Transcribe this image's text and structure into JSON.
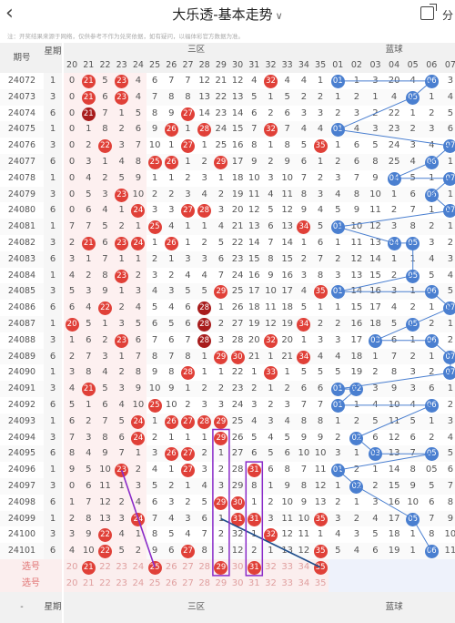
{
  "app": {
    "title": "大乐透-基本走势",
    "share_label": "分",
    "back": "back-icon"
  },
  "disclaimer": "注：开奖结果来源于网络，仅供参考不作为兑奖依据，如有疑问，以福体彩官方数据为准。",
  "colors": {
    "front_ball": "#e04038",
    "dup_ball": "#a81c1c",
    "back_ball": "#4a7fd0",
    "select_bg": "#fbeeee"
  },
  "header": {
    "period": "期号",
    "week": "星期",
    "front_zone": "三区",
    "back_zone": "蓝球",
    "front_cols": [
      "20",
      "21",
      "22",
      "23",
      "24",
      "25",
      "26",
      "27",
      "28",
      "29",
      "30",
      "31",
      "32",
      "33",
      "34",
      "35"
    ],
    "back_cols": [
      "01",
      "02",
      "03",
      "04",
      "05",
      "06",
      "07"
    ]
  },
  "rows": [
    {
      "p": "24072",
      "w": "1",
      "f": [
        "0",
        "21",
        "5",
        "23",
        "4",
        "6",
        "7",
        "7",
        "12",
        "21",
        "12",
        "4",
        "32",
        "4",
        "4",
        "1"
      ],
      "fb": [
        1,
        3,
        12
      ],
      "b": [
        "01",
        "1",
        "3",
        "20",
        "4",
        "06",
        "3"
      ],
      "bb": [
        0,
        5
      ]
    },
    {
      "p": "24073",
      "w": "3",
      "f": [
        "0",
        "21",
        "6",
        "23",
        "4",
        "7",
        "8",
        "8",
        "13",
        "22",
        "13",
        "5",
        "1",
        "5",
        "2",
        "2"
      ],
      "fb": [
        1,
        3
      ],
      "b": [
        "1",
        "2",
        "1",
        "4",
        "05",
        "1",
        "4"
      ],
      "bb": [
        4
      ]
    },
    {
      "p": "24074",
      "w": "6",
      "f": [
        "0",
        "21",
        "7",
        "1",
        "5",
        "8",
        "9",
        "27",
        "14",
        "23",
        "14",
        "6",
        "2",
        "6",
        "3",
        "3"
      ],
      "fb": [
        1,
        7
      ],
      "df": [
        1
      ],
      "b": [
        "2",
        "3",
        "2",
        "22",
        "1",
        "2",
        "5"
      ],
      "bb": []
    },
    {
      "p": "24075",
      "w": "1",
      "f": [
        "0",
        "1",
        "8",
        "2",
        "6",
        "9",
        "26",
        "1",
        "28",
        "24",
        "15",
        "7",
        "32",
        "7",
        "4",
        "4"
      ],
      "fb": [
        6,
        8,
        12
      ],
      "b": [
        "01",
        "4",
        "3",
        "23",
        "2",
        "3",
        "6"
      ],
      "bb": [
        0
      ]
    },
    {
      "p": "24076",
      "w": "3",
      "f": [
        "0",
        "2",
        "22",
        "3",
        "7",
        "10",
        "1",
        "27",
        "1",
        "25",
        "16",
        "8",
        "1",
        "8",
        "5",
        "35"
      ],
      "fb": [
        2,
        7,
        15
      ],
      "b": [
        "1",
        "6",
        "5",
        "24",
        "3",
        "4",
        "07"
      ],
      "bb": [
        6
      ]
    },
    {
      "p": "24077",
      "w": "6",
      "f": [
        "0",
        "3",
        "1",
        "4",
        "8",
        "25",
        "26",
        "1",
        "2",
        "29",
        "17",
        "9",
        "2",
        "9",
        "6",
        "1"
      ],
      "fb": [
        5,
        6,
        9
      ],
      "b": [
        "2",
        "6",
        "8",
        "25",
        "4",
        "06",
        "1"
      ],
      "bb": [
        5
      ]
    },
    {
      "p": "24078",
      "w": "1",
      "f": [
        "0",
        "4",
        "2",
        "5",
        "9",
        "1",
        "1",
        "2",
        "3",
        "1",
        "18",
        "10",
        "3",
        "10",
        "7",
        "2"
      ],
      "fb": [],
      "b": [
        "3",
        "7",
        "9",
        "04",
        "5",
        "1",
        "07"
      ],
      "bb": [
        3,
        6
      ]
    },
    {
      "p": "24079",
      "w": "3",
      "f": [
        "0",
        "5",
        "3",
        "23",
        "10",
        "2",
        "2",
        "3",
        "4",
        "2",
        "19",
        "11",
        "4",
        "11",
        "8",
        "3"
      ],
      "fb": [
        3
      ],
      "b": [
        "4",
        "8",
        "10",
        "1",
        "6",
        "06",
        "1"
      ],
      "bb": [
        5
      ]
    },
    {
      "p": "24080",
      "w": "6",
      "f": [
        "0",
        "6",
        "4",
        "1",
        "24",
        "3",
        "3",
        "27",
        "28",
        "3",
        "20",
        "12",
        "5",
        "12",
        "9",
        "4"
      ],
      "fb": [
        4,
        7,
        8
      ],
      "b": [
        "5",
        "9",
        "11",
        "2",
        "7",
        "1",
        "07"
      ],
      "bb": [
        6
      ]
    },
    {
      "p": "24081",
      "w": "1",
      "f": [
        "7",
        "7",
        "5",
        "2",
        "1",
        "25",
        "4",
        "1",
        "1",
        "4",
        "21",
        "13",
        "6",
        "13",
        "34",
        "5"
      ],
      "fb": [
        5,
        14
      ],
      "b": [
        "01",
        "10",
        "12",
        "3",
        "8",
        "2",
        "1"
      ],
      "bb": [
        0
      ]
    },
    {
      "p": "24082",
      "w": "3",
      "f": [
        "2",
        "21",
        "6",
        "23",
        "24",
        "1",
        "26",
        "1",
        "2",
        "5",
        "22",
        "14",
        "7",
        "14",
        "1",
        "6"
      ],
      "fb": [
        1,
        3,
        4,
        6
      ],
      "b": [
        "1",
        "11",
        "13",
        "04",
        "05",
        "3",
        "2"
      ],
      "bb": [
        3,
        4
      ]
    },
    {
      "p": "24083",
      "w": "6",
      "f": [
        "3",
        "1",
        "7",
        "1",
        "1",
        "2",
        "1",
        "3",
        "3",
        "6",
        "23",
        "15",
        "8",
        "15",
        "2",
        "7"
      ],
      "fb": [],
      "b": [
        "2",
        "12",
        "14",
        "1",
        "1",
        "4",
        "3"
      ],
      "bb": []
    },
    {
      "p": "24084",
      "w": "1",
      "f": [
        "4",
        "2",
        "8",
        "23",
        "2",
        "3",
        "2",
        "4",
        "4",
        "7",
        "24",
        "16",
        "9",
        "16",
        "3",
        "8"
      ],
      "fb": [
        3
      ],
      "b": [
        "3",
        "13",
        "15",
        "2",
        "05",
        "5",
        "4"
      ],
      "bb": [
        4
      ]
    },
    {
      "p": "24085",
      "w": "3",
      "f": [
        "5",
        "3",
        "9",
        "1",
        "3",
        "4",
        "3",
        "5",
        "5",
        "29",
        "25",
        "17",
        "10",
        "17",
        "4",
        "35"
      ],
      "fb": [
        9,
        15
      ],
      "b": [
        "01",
        "14",
        "16",
        "3",
        "1",
        "06",
        "5"
      ],
      "bb": [
        0,
        5
      ]
    },
    {
      "p": "24086",
      "w": "6",
      "f": [
        "6",
        "4",
        "22",
        "2",
        "4",
        "5",
        "4",
        "6",
        "28",
        "1",
        "26",
        "18",
        "11",
        "18",
        "5",
        "1"
      ],
      "fb": [
        2,
        8
      ],
      "df": [
        8
      ],
      "b": [
        "1",
        "15",
        "17",
        "4",
        "2",
        "1",
        "07"
      ],
      "bb": [
        6
      ]
    },
    {
      "p": "24087",
      "w": "1",
      "f": [
        "20",
        "5",
        "1",
        "3",
        "5",
        "6",
        "5",
        "6",
        "28",
        "2",
        "27",
        "19",
        "12",
        "19",
        "34",
        "2"
      ],
      "fb": [
        0,
        8,
        14
      ],
      "df": [
        8
      ],
      "b": [
        "2",
        "16",
        "18",
        "5",
        "05",
        "2",
        "1"
      ],
      "bb": [
        4
      ]
    },
    {
      "p": "24088",
      "w": "3",
      "f": [
        "1",
        "6",
        "2",
        "23",
        "6",
        "7",
        "6",
        "7",
        "28",
        "3",
        "28",
        "20",
        "32",
        "20",
        "1",
        "3"
      ],
      "fb": [
        3,
        8,
        12
      ],
      "df": [
        8
      ],
      "b": [
        "3",
        "17",
        "03",
        "6",
        "1",
        "06",
        "2"
      ],
      "bb": [
        2,
        5
      ]
    },
    {
      "p": "24089",
      "w": "6",
      "f": [
        "2",
        "7",
        "3",
        "1",
        "7",
        "8",
        "7",
        "8",
        "1",
        "29",
        "30",
        "21",
        "1",
        "21",
        "34",
        "4"
      ],
      "fb": [
        9,
        10,
        14
      ],
      "b": [
        "4",
        "18",
        "1",
        "7",
        "2",
        "1",
        "07"
      ],
      "bb": [
        6
      ]
    },
    {
      "p": "24090",
      "w": "1",
      "f": [
        "3",
        "8",
        "4",
        "2",
        "8",
        "9",
        "8",
        "28",
        "1",
        "1",
        "22",
        "1",
        "33",
        "1",
        "5",
        "5"
      ],
      "fb": [
        7,
        12
      ],
      "b": [
        "5",
        "19",
        "2",
        "8",
        "3",
        "2",
        "07"
      ],
      "bb": [
        6
      ]
    },
    {
      "p": "24091",
      "w": "3",
      "f": [
        "4",
        "21",
        "5",
        "3",
        "9",
        "10",
        "9",
        "1",
        "2",
        "2",
        "23",
        "2",
        "1",
        "2",
        "6",
        "6"
      ],
      "fb": [
        1
      ],
      "b": [
        "01",
        "02",
        "3",
        "9",
        "3",
        "6",
        "1"
      ],
      "bb": [
        0,
        1
      ]
    },
    {
      "p": "24092",
      "w": "6",
      "f": [
        "5",
        "1",
        "6",
        "4",
        "10",
        "25",
        "10",
        "2",
        "3",
        "3",
        "24",
        "3",
        "2",
        "3",
        "7",
        "7"
      ],
      "fb": [
        5
      ],
      "b": [
        "01",
        "1",
        "4",
        "10",
        "4",
        "06",
        "2"
      ],
      "bb": [
        0,
        5
      ]
    },
    {
      "p": "24093",
      "w": "1",
      "f": [
        "6",
        "2",
        "7",
        "5",
        "24",
        "1",
        "26",
        "27",
        "28",
        "29",
        "25",
        "4",
        "3",
        "4",
        "8",
        "8"
      ],
      "fb": [
        4,
        6,
        7,
        8,
        9
      ],
      "b": [
        "1",
        "2",
        "5",
        "11",
        "5",
        "1",
        "3"
      ],
      "bb": []
    },
    {
      "p": "24094",
      "w": "3",
      "f": [
        "7",
        "3",
        "8",
        "6",
        "24",
        "2",
        "1",
        "1",
        "1",
        "29",
        "26",
        "5",
        "4",
        "5",
        "9",
        "9"
      ],
      "fb": [
        4,
        9
      ],
      "b": [
        "2",
        "02",
        "6",
        "12",
        "6",
        "2",
        "4"
      ],
      "bb": [
        1
      ]
    },
    {
      "p": "24095",
      "w": "6",
      "f": [
        "8",
        "4",
        "9",
        "7",
        "1",
        "3",
        "26",
        "27",
        "2",
        "1",
        "27",
        "6",
        "5",
        "6",
        "10",
        "10"
      ],
      "fb": [
        6,
        7
      ],
      "b": [
        "3",
        "1",
        "03",
        "13",
        "7",
        "05",
        "5"
      ],
      "bb": [
        2,
        5
      ]
    },
    {
      "p": "24096",
      "w": "1",
      "f": [
        "9",
        "5",
        "10",
        "23",
        "2",
        "4",
        "1",
        "27",
        "3",
        "2",
        "28",
        "31",
        "6",
        "8",
        "7",
        "11"
      ],
      "fb": [
        3,
        7,
        11
      ],
      "b": [
        "01",
        "2",
        "1",
        "14",
        "8",
        "05",
        "6"
      ],
      "bb": [
        0
      ]
    },
    {
      "p": "24097",
      "w": "3",
      "f": [
        "0",
        "6",
        "11",
        "1",
        "3",
        "5",
        "2",
        "1",
        "4",
        "3",
        "29",
        "8",
        "1",
        "9",
        "8",
        "12"
      ],
      "fb": [],
      "b": [
        "1",
        "02",
        "2",
        "15",
        "9",
        "5",
        "7"
      ],
      "bb": [
        1
      ]
    },
    {
      "p": "24098",
      "w": "6",
      "f": [
        "1",
        "7",
        "12",
        "2",
        "4",
        "6",
        "3",
        "2",
        "5",
        "29",
        "30",
        "1",
        "2",
        "10",
        "9",
        "13"
      ],
      "fb": [
        9,
        10
      ],
      "b": [
        "2",
        "1",
        "3",
        "16",
        "10",
        "6",
        "8"
      ],
      "bb": []
    },
    {
      "p": "24099",
      "w": "1",
      "f": [
        "2",
        "8",
        "13",
        "3",
        "24",
        "7",
        "4",
        "3",
        "6",
        "1",
        "31",
        "31",
        "3",
        "11",
        "10",
        "35"
      ],
      "fb": [
        4,
        10,
        11,
        15
      ],
      "b": [
        "3",
        "2",
        "4",
        "17",
        "05",
        "7",
        "9"
      ],
      "bb": [
        4
      ]
    },
    {
      "p": "24100",
      "w": "3",
      "f": [
        "3",
        "9",
        "22",
        "4",
        "1",
        "8",
        "5",
        "4",
        "7",
        "2",
        "32",
        "1",
        "32",
        "12",
        "11",
        "1"
      ],
      "fb": [
        2,
        12
      ],
      "b": [
        "4",
        "3",
        "5",
        "18",
        "1",
        "8",
        "10"
      ],
      "bb": []
    },
    {
      "p": "24101",
      "w": "6",
      "f": [
        "4",
        "10",
        "22",
        "5",
        "2",
        "9",
        "6",
        "27",
        "8",
        "3",
        "12",
        "2",
        "1",
        "13",
        "12",
        "35"
      ],
      "fb": [
        2,
        7,
        15
      ],
      "b": [
        "5",
        "4",
        "6",
        "19",
        "1",
        "06",
        "11"
      ],
      "bb": [
        5
      ]
    }
  ],
  "select": {
    "label": "选号",
    "label2": "选号",
    "front": [
      "20",
      "21",
      "22",
      "23",
      "24",
      "25",
      "26",
      "27",
      "28",
      "29",
      "30",
      "31",
      "32",
      "33",
      "34",
      "35"
    ],
    "back": [
      "01",
      "02",
      "03",
      "04",
      "05",
      "06",
      "07"
    ],
    "picked": [
      1,
      5,
      9,
      11,
      15
    ]
  },
  "footer": {
    "week": "星期",
    "zone": "三区",
    "blue": "蓝球"
  }
}
